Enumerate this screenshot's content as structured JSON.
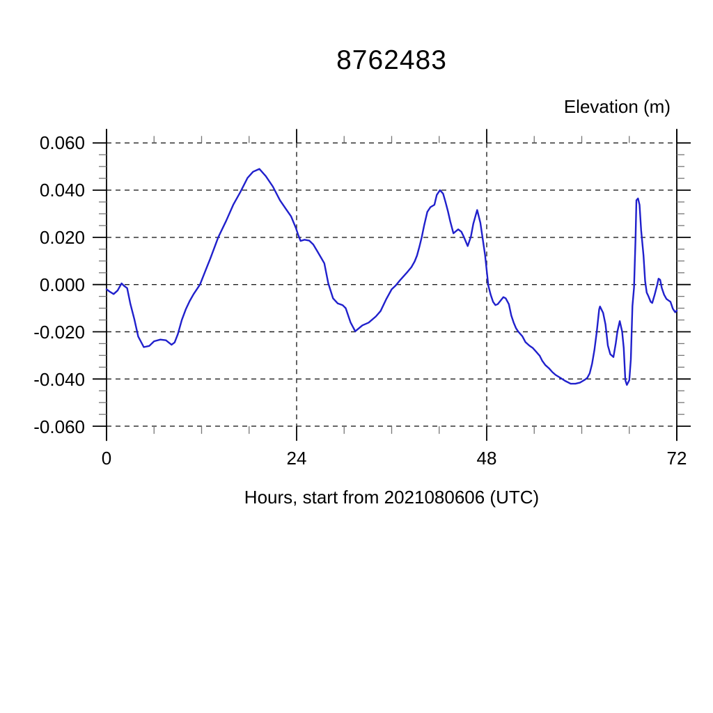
{
  "page": {
    "background_color": "#ffffff",
    "text_color": "#000000"
  },
  "chart_data": {
    "type": "line",
    "title": "8762483",
    "ylabel": "Elevation (m)",
    "xlabel": "Hours, start from 2021080606 (UTC)",
    "xlim": [
      0,
      72
    ],
    "ylim": [
      -0.06,
      0.06
    ],
    "x_major_ticks": [
      0,
      24,
      48,
      72
    ],
    "x_tick_labels": [
      "0",
      "24",
      "48",
      "72"
    ],
    "x_minor_step": 6,
    "x_gridlines": [
      24,
      48
    ],
    "y_major_ticks": [
      0.06,
      0.04,
      0.02,
      0.0,
      -0.02,
      -0.04,
      -0.06
    ],
    "y_tick_labels": [
      "0.060",
      "0.040",
      "0.020",
      "0.000",
      "-0.020",
      "-0.040",
      "-0.060"
    ],
    "y_minor_step": 0.005,
    "grid": "dashed",
    "legend": "none",
    "line_color": "#2020cc",
    "grid_color": "#222222",
    "axis_color": "#000000",
    "minor_tick_color": "#777777",
    "series": [
      {
        "name": "elevation",
        "points": [
          [
            0,
            -0.002
          ],
          [
            0.4,
            -0.003
          ],
          [
            0.9,
            -0.004
          ],
          [
            1.4,
            -0.0025
          ],
          [
            1.9,
            0.0005
          ],
          [
            2.2,
            -0.0005
          ],
          [
            2.6,
            -0.0015
          ],
          [
            3,
            -0.008
          ],
          [
            3.5,
            -0.0145
          ],
          [
            4,
            -0.022
          ],
          [
            4.7,
            -0.0265
          ],
          [
            5.4,
            -0.026
          ],
          [
            6,
            -0.024
          ],
          [
            6.8,
            -0.0233
          ],
          [
            7.5,
            -0.0236
          ],
          [
            8.2,
            -0.0255
          ],
          [
            8.6,
            -0.0245
          ],
          [
            9,
            -0.021
          ],
          [
            9.5,
            -0.015
          ],
          [
            10,
            -0.0105
          ],
          [
            10.5,
            -0.007
          ],
          [
            11,
            -0.004
          ],
          [
            11.8,
            0
          ],
          [
            12.5,
            0.006
          ],
          [
            13.1,
            0.011
          ],
          [
            13.6,
            0.0155
          ],
          [
            14.1,
            0.02
          ],
          [
            15.1,
            0.027
          ],
          [
            16,
            0.0338
          ],
          [
            16.9,
            0.0392
          ],
          [
            17.8,
            0.0452
          ],
          [
            18.5,
            0.0478
          ],
          [
            19.3,
            0.049
          ],
          [
            20.1,
            0.046
          ],
          [
            21,
            0.0415
          ],
          [
            21.9,
            0.0357
          ],
          [
            22.7,
            0.0318
          ],
          [
            23.3,
            0.0289
          ],
          [
            23.9,
            0.024
          ],
          [
            24.2,
            0.021
          ],
          [
            24.5,
            0.0185
          ],
          [
            25,
            0.019
          ],
          [
            25.6,
            0.0186
          ],
          [
            26.1,
            0.017
          ],
          [
            26.6,
            0.0142
          ],
          [
            27.1,
            0.0113
          ],
          [
            27.5,
            0.009
          ],
          [
            28,
            0.0005
          ],
          [
            28.6,
            -0.0058
          ],
          [
            29.2,
            -0.008
          ],
          [
            29.8,
            -0.0087
          ],
          [
            30.2,
            -0.01
          ],
          [
            30.8,
            -0.016
          ],
          [
            31.4,
            -0.0198
          ],
          [
            32.3,
            -0.0173
          ],
          [
            33.1,
            -0.0161
          ],
          [
            34,
            -0.0135
          ],
          [
            34.6,
            -0.0112
          ],
          [
            35.3,
            -0.0063
          ],
          [
            36,
            -0.002
          ],
          [
            36.5,
            -0.0004
          ],
          [
            37.1,
            0.002
          ],
          [
            38,
            0.0054
          ],
          [
            38.5,
            0.0074
          ],
          [
            38.9,
            0.0098
          ],
          [
            39.2,
            0.0123
          ],
          [
            39.5,
            0.016
          ],
          [
            39.8,
            0.0201
          ],
          [
            40.1,
            0.025
          ],
          [
            40.5,
            0.0308
          ],
          [
            40.9,
            0.0328
          ],
          [
            41.4,
            0.0338
          ],
          [
            41.7,
            0.038
          ],
          [
            42.1,
            0.04
          ],
          [
            42.5,
            0.0385
          ],
          [
            42.8,
            0.035
          ],
          [
            43.1,
            0.0311
          ],
          [
            43.4,
            0.0267
          ],
          [
            43.8,
            0.0217
          ],
          [
            44.4,
            0.0234
          ],
          [
            44.8,
            0.0224
          ],
          [
            45.1,
            0.0203
          ],
          [
            45.6,
            0.0163
          ],
          [
            46,
            0.0203
          ],
          [
            46.3,
            0.0257
          ],
          [
            46.8,
            0.0316
          ],
          [
            47.2,
            0.0262
          ],
          [
            47.5,
            0.0193
          ],
          [
            47.8,
            0.0124
          ],
          [
            48.2,
            -0.0004
          ],
          [
            48.5,
            -0.0043
          ],
          [
            48.8,
            -0.0073
          ],
          [
            49.1,
            -0.0087
          ],
          [
            49.4,
            -0.0083
          ],
          [
            50.1,
            -0.0053
          ],
          [
            50.4,
            -0.0058
          ],
          [
            50.8,
            -0.0083
          ],
          [
            51.1,
            -0.0131
          ],
          [
            51.4,
            -0.0161
          ],
          [
            51.7,
            -0.0185
          ],
          [
            52,
            -0.02
          ],
          [
            52.5,
            -0.0219
          ],
          [
            52.9,
            -0.0244
          ],
          [
            53.4,
            -0.0259
          ],
          [
            53.8,
            -0.0268
          ],
          [
            54.2,
            -0.0283
          ],
          [
            54.7,
            -0.0302
          ],
          [
            55,
            -0.0322
          ],
          [
            55.4,
            -0.0341
          ],
          [
            55.9,
            -0.0356
          ],
          [
            56.3,
            -0.0371
          ],
          [
            56.7,
            -0.0383
          ],
          [
            57.3,
            -0.0395
          ],
          [
            57.9,
            -0.0408
          ],
          [
            58.6,
            -0.042
          ],
          [
            59.2,
            -0.042
          ],
          [
            59.8,
            -0.0415
          ],
          [
            60.4,
            -0.0403
          ],
          [
            60.7,
            -0.0395
          ],
          [
            61,
            -0.0376
          ],
          [
            61.3,
            -0.0336
          ],
          [
            61.6,
            -0.0277
          ],
          [
            61.9,
            -0.0199
          ],
          [
            62.2,
            -0.0105
          ],
          [
            62.3,
            -0.0093
          ],
          [
            62.7,
            -0.012
          ],
          [
            63,
            -0.0169
          ],
          [
            63.3,
            -0.0258
          ],
          [
            63.6,
            -0.0295
          ],
          [
            64,
            -0.0307
          ],
          [
            64.3,
            -0.0248
          ],
          [
            64.5,
            -0.0199
          ],
          [
            64.8,
            -0.0155
          ],
          [
            65.1,
            -0.0199
          ],
          [
            65.3,
            -0.0268
          ],
          [
            65.5,
            -0.0405
          ],
          [
            65.7,
            -0.0425
          ],
          [
            66,
            -0.0405
          ],
          [
            66.2,
            -0.0317
          ],
          [
            66.4,
            -0.0091
          ],
          [
            66.6,
            -0.0012
          ],
          [
            66.8,
            0.02
          ],
          [
            66.9,
            0.0357
          ],
          [
            67.1,
            0.0365
          ],
          [
            67.3,
            0.0338
          ],
          [
            67.5,
            0.023
          ],
          [
            67.8,
            0.0123
          ],
          [
            68,
            0.0015
          ],
          [
            68.2,
            -0.0034
          ],
          [
            68.4,
            -0.0048
          ],
          [
            68.7,
            -0.0073
          ],
          [
            68.9,
            -0.0078
          ],
          [
            69.2,
            -0.0043
          ],
          [
            69.5,
            -0.0004
          ],
          [
            69.7,
            0.0025
          ],
          [
            69.9,
            0.002
          ],
          [
            70.1,
            -0.0014
          ],
          [
            70.4,
            -0.0043
          ],
          [
            70.7,
            -0.0061
          ],
          [
            71,
            -0.0068
          ],
          [
            71.2,
            -0.0073
          ],
          [
            71.5,
            -0.0102
          ],
          [
            71.8,
            -0.0117
          ],
          [
            72,
            -0.011
          ]
        ]
      }
    ]
  }
}
